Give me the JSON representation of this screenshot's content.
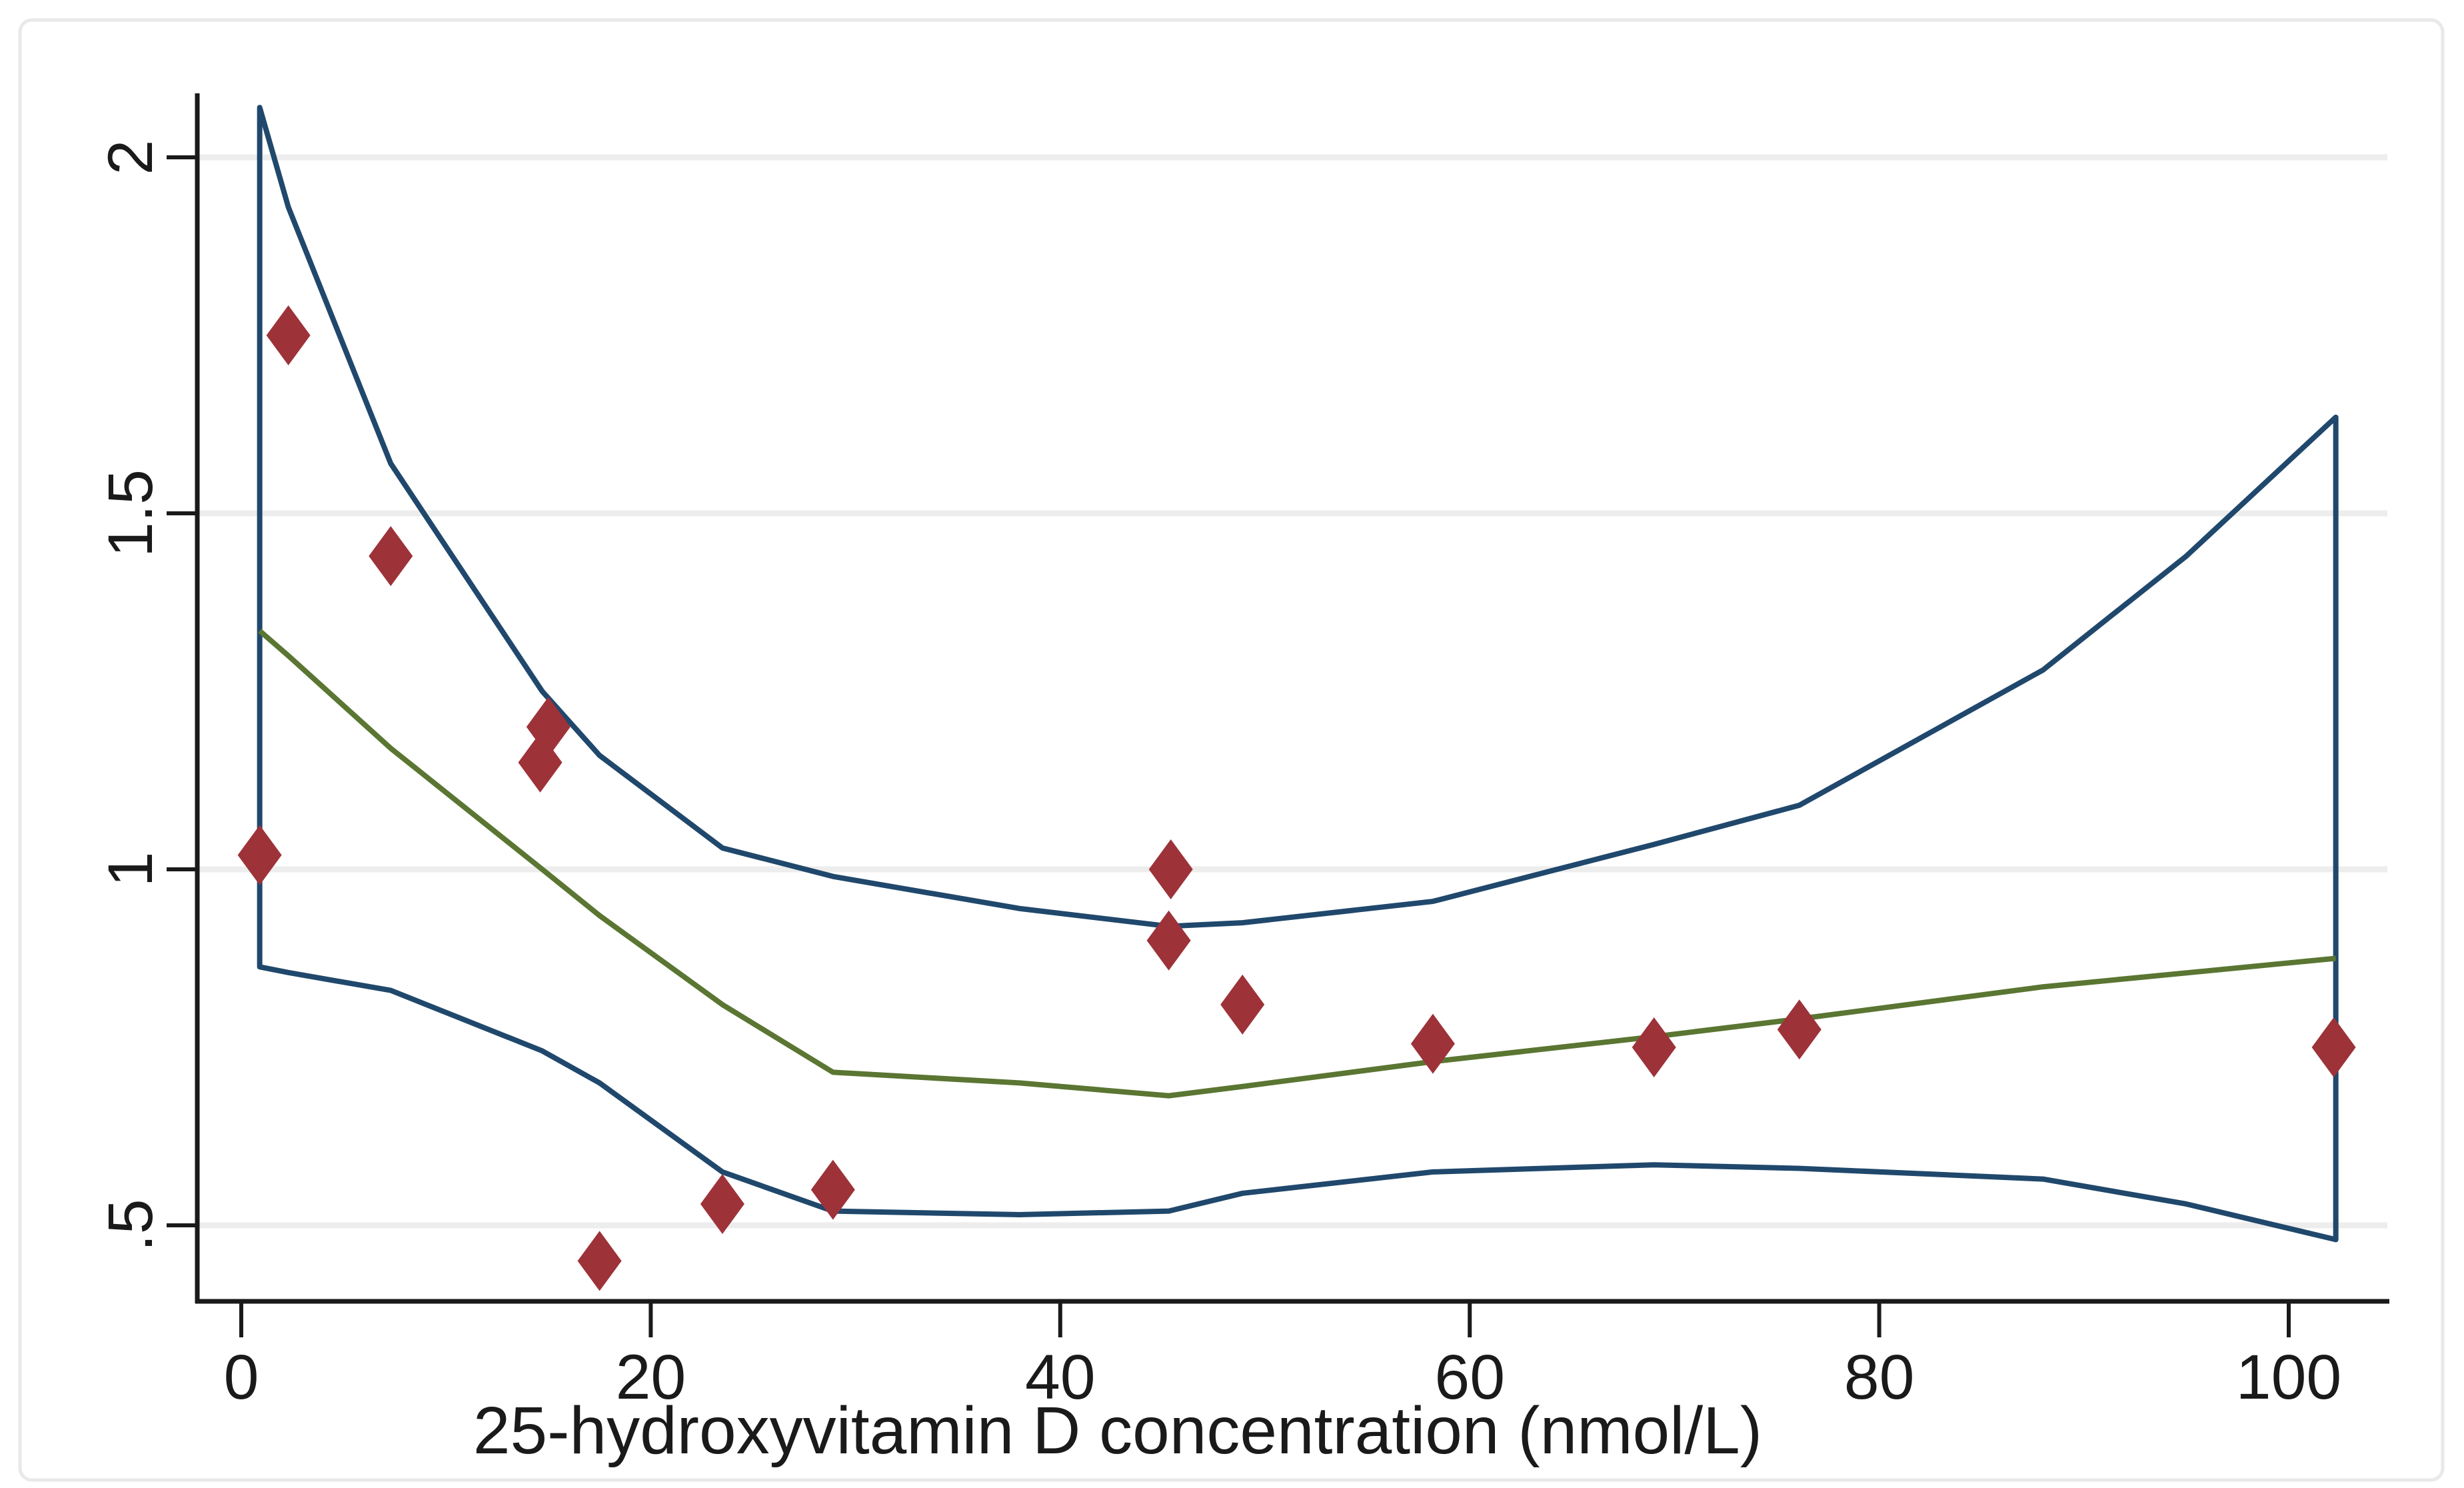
{
  "frame": {
    "background_color": "#ffffff",
    "border_color": "#e9e9e9",
    "gridline_color": "#ededed",
    "axis_color": "#1a1a1a"
  },
  "chart_data": {
    "type": "scatter",
    "title": "",
    "xlabel": "25-hydroxyvitamin D concentration (nmol/L)",
    "ylabel": "",
    "xlim": [
      -2.15,
      104.7
    ],
    "ylim": [
      0.39,
      2.1
    ],
    "x_ticks": [
      0,
      20,
      40,
      60,
      80,
      100
    ],
    "x_tick_labels": [
      "0",
      "20",
      "40",
      "60",
      "80",
      "100"
    ],
    "y_ticks": [
      0.5,
      1,
      1.5,
      2
    ],
    "y_tick_labels": [
      ".5",
      "1",
      "1.5",
      "2"
    ],
    "grid": "horizontal gridlines at y ticks",
    "legend": "none",
    "colors": {
      "scatter": "#9d3239",
      "fitted_line": "#5a7632",
      "confidence_band": "#20486c"
    },
    "series": [
      {
        "name": "observed-points",
        "type": "scatter",
        "marker": "diamond",
        "color": "#9d3239",
        "points": [
          [
            0.9,
            1.02
          ],
          [
            2.3,
            1.75
          ],
          [
            7.3,
            1.44
          ],
          [
            14.6,
            1.15
          ],
          [
            15.0,
            1.2
          ],
          [
            17.5,
            0.45
          ],
          [
            23.5,
            0.53
          ],
          [
            28.9,
            0.55
          ],
          [
            45.4,
            1.0
          ],
          [
            45.3,
            0.9
          ],
          [
            48.9,
            0.81
          ],
          [
            58.2,
            0.755
          ],
          [
            69.0,
            0.75
          ],
          [
            76.1,
            0.775
          ],
          [
            102.2,
            0.75
          ]
        ]
      },
      {
        "name": "fitted-spline",
        "type": "line",
        "color": "#5a7632",
        "points": [
          [
            0.9,
            1.335
          ],
          [
            2.3,
            1.3
          ],
          [
            7.3,
            1.17
          ],
          [
            14.7,
            1.0
          ],
          [
            17.5,
            0.935
          ],
          [
            23.5,
            0.81
          ],
          [
            28.9,
            0.715
          ],
          [
            38,
            0.7
          ],
          [
            45.3,
            0.682
          ],
          [
            48.9,
            0.695
          ],
          [
            58.2,
            0.73
          ],
          [
            69,
            0.765
          ],
          [
            76.1,
            0.79
          ],
          [
            88,
            0.835
          ],
          [
            102.3,
            0.875
          ]
        ]
      },
      {
        "name": "ci-upper-bound",
        "type": "line",
        "color": "#20486c",
        "points": [
          [
            0.9,
            2.07
          ],
          [
            2.3,
            1.93
          ],
          [
            7.3,
            1.57
          ],
          [
            14.7,
            1.25
          ],
          [
            17.5,
            1.16
          ],
          [
            23.5,
            1.03
          ],
          [
            28.9,
            0.99
          ],
          [
            38,
            0.945
          ],
          [
            45.3,
            0.92
          ],
          [
            48.9,
            0.925
          ],
          [
            58.2,
            0.955
          ],
          [
            69,
            1.035
          ],
          [
            76.1,
            1.09
          ],
          [
            88,
            1.28
          ],
          [
            95,
            1.44
          ],
          [
            102.3,
            1.635
          ]
        ]
      },
      {
        "name": "ci-lower-bound",
        "type": "line",
        "color": "#20486c",
        "points": [
          [
            0.9,
            0.863
          ],
          [
            2.3,
            0.855
          ],
          [
            7.3,
            0.83
          ],
          [
            14.7,
            0.745
          ],
          [
            17.5,
            0.7
          ],
          [
            23.5,
            0.575
          ],
          [
            28.9,
            0.52
          ],
          [
            38,
            0.515
          ],
          [
            45.3,
            0.52
          ],
          [
            48.9,
            0.545
          ],
          [
            58.2,
            0.575
          ],
          [
            69,
            0.585
          ],
          [
            76.1,
            0.58
          ],
          [
            88,
            0.565
          ],
          [
            95,
            0.53
          ],
          [
            102.3,
            0.48
          ]
        ],
        "note": "band outline closes with vertical edges at x=0.9 and x=102.3"
      }
    ]
  }
}
